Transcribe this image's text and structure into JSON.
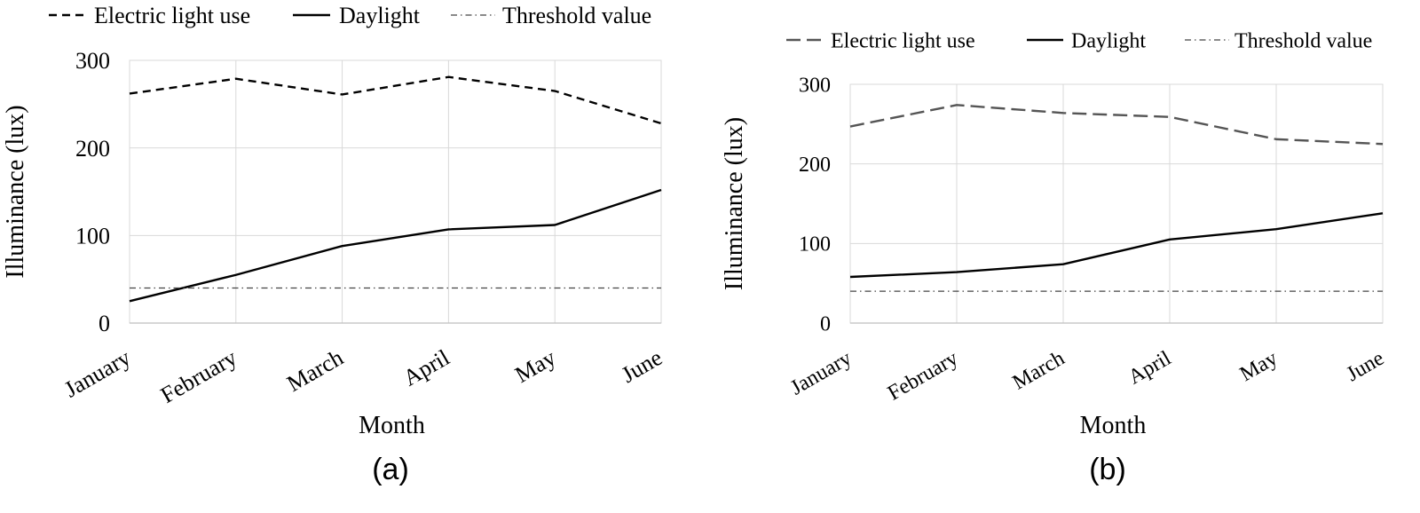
{
  "chart_data": [
    {
      "type": "line",
      "panel_label": "(a)",
      "xlabel": "Month",
      "ylabel": "Illuminance (lux)",
      "categories": [
        "January",
        "February",
        "March",
        "April",
        "May",
        "June"
      ],
      "ylim": [
        0,
        300
      ],
      "yticks": [
        "0",
        "100",
        "200",
        "300"
      ],
      "grid": true,
      "legend_position": "top",
      "series": [
        {
          "name": "Electric light use",
          "style": "dashed",
          "color": "#000000",
          "values": [
            262,
            279,
            261,
            281,
            265,
            228
          ]
        },
        {
          "name": "Daylight",
          "style": "solid",
          "color": "#000000",
          "values": [
            25,
            55,
            88,
            107,
            112,
            152
          ]
        },
        {
          "name": "Threshold value",
          "style": "dashdot",
          "color": "#444444",
          "values": [
            40,
            40,
            40,
            40,
            40,
            40
          ]
        }
      ]
    },
    {
      "type": "line",
      "panel_label": "(b)",
      "xlabel": "Month",
      "ylabel": "Illuminance (lux)",
      "categories": [
        "January",
        "February",
        "March",
        "April",
        "May",
        "June"
      ],
      "ylim": [
        0,
        300
      ],
      "yticks": [
        "0",
        "100",
        "200",
        "300"
      ],
      "grid": true,
      "legend_position": "top",
      "series": [
        {
          "name": "Electric light use",
          "style": "longdash",
          "color": "#555555",
          "values": [
            247,
            274,
            264,
            259,
            231,
            225
          ]
        },
        {
          "name": "Daylight",
          "style": "solid",
          "color": "#000000",
          "values": [
            58,
            64,
            74,
            105,
            118,
            138
          ]
        },
        {
          "name": "Threshold value",
          "style": "dashdot",
          "color": "#444444",
          "values": [
            40,
            40,
            40,
            40,
            40,
            40
          ]
        }
      ]
    }
  ]
}
